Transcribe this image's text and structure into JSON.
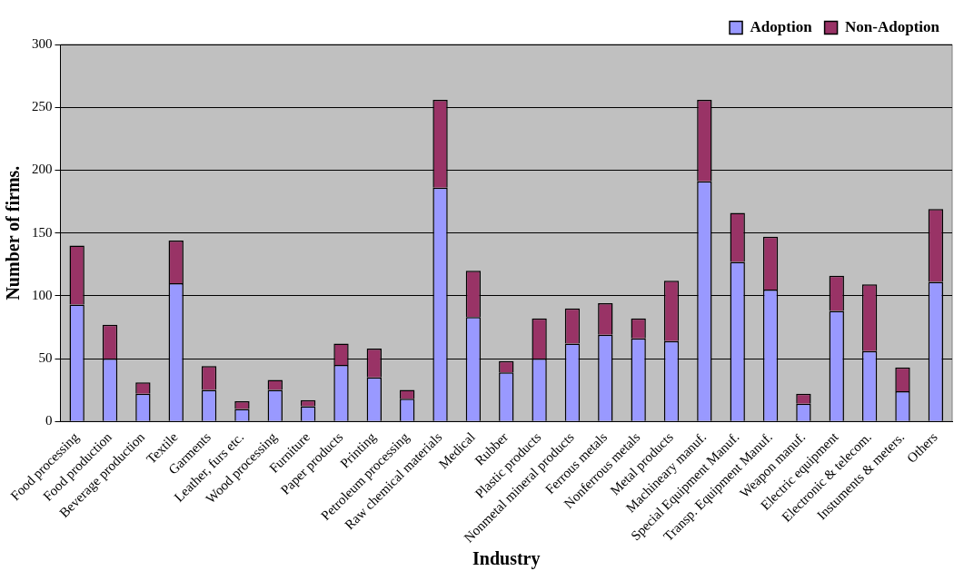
{
  "chart_data": {
    "type": "bar",
    "stacked": true,
    "xlabel": "Industry",
    "ylabel": "Number of firms.",
    "categories": [
      "Food processing",
      "Food production",
      "Beverage production",
      "Textile",
      "Garments",
      "Leather, furs etc.",
      "Wood processing",
      "Furniture",
      "Paper products",
      "Printing",
      "Petroleum processing",
      "Raw chemical materials",
      "Medical",
      "Rubber",
      "Plastic products",
      "Nonmetal mineral products",
      "Ferrous metals",
      "Nonferrous metals",
      "Metal products",
      "Machineary manuf.",
      "Special Equipment Manuf.",
      "Transp. Equipment Manuf.",
      "Weapon manuf.",
      "Electric equipment",
      "Electronic & telecom.",
      "Instuments & meters.",
      "Others"
    ],
    "series": [
      {
        "name": "Adoption",
        "color": "#9999ff",
        "values": [
          93,
          50,
          22,
          110,
          25,
          10,
          25,
          12,
          45,
          35,
          18,
          186,
          83,
          39,
          50,
          62,
          69,
          66,
          64,
          191,
          127,
          105,
          14,
          88,
          56,
          24,
          111
        ]
      },
      {
        "name": "Non-Adoption",
        "color": "#993366",
        "values": [
          47,
          27,
          9,
          34,
          19,
          6,
          8,
          5,
          17,
          23,
          7,
          70,
          37,
          9,
          32,
          28,
          25,
          16,
          48,
          65,
          39,
          42,
          8,
          28,
          53,
          19,
          58
        ]
      }
    ],
    "ylim": [
      0,
      300
    ],
    "yticks": [
      0,
      50,
      100,
      150,
      200,
      250,
      300
    ],
    "grid": "y",
    "legend": "top right"
  }
}
